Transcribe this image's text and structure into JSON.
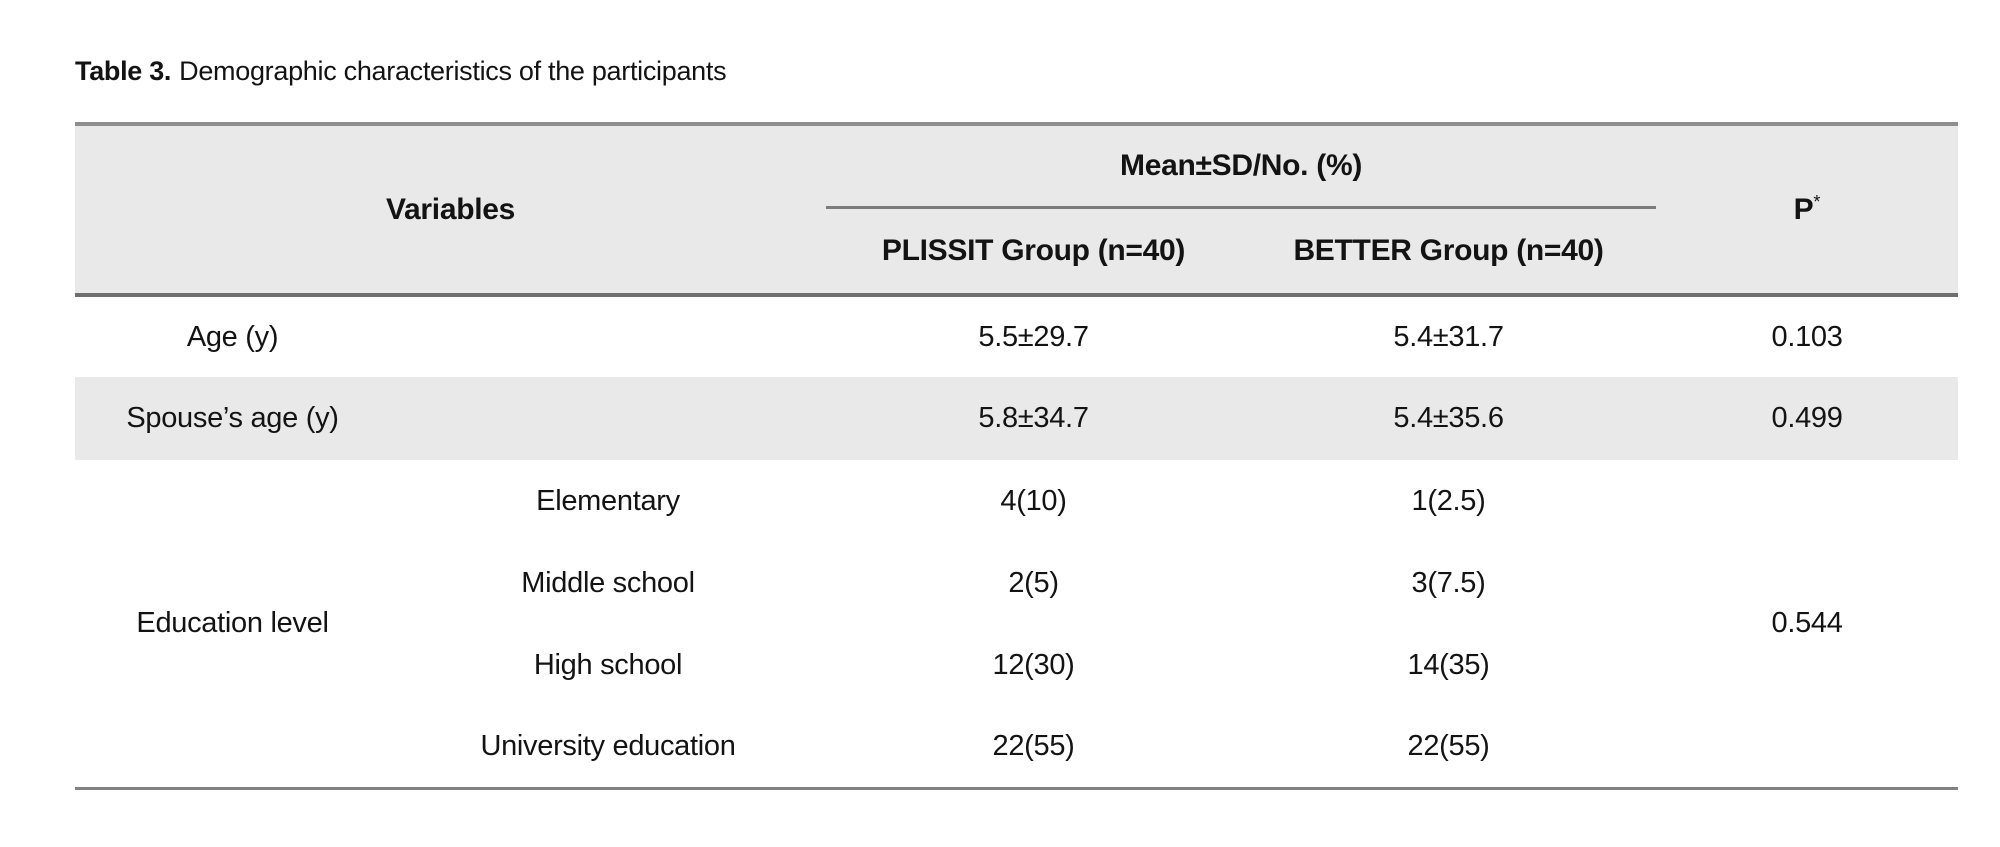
{
  "caption": {
    "label": "Table 3.",
    "text": "Demographic characteristics of the participants"
  },
  "table": {
    "header": {
      "variables": "Variables",
      "group_header": "Mean±SD/No. (%)",
      "plissit": "PLISSIT Group (n=40)",
      "better": "BETTER Group (n=40)",
      "p_label": "P",
      "p_sup": "*"
    },
    "rows": [
      {
        "variable": "Age (y)",
        "plissit": "5.5±29.7",
        "better": "5.4±31.7",
        "p": "0.103"
      },
      {
        "variable": "Spouse’s age (y)",
        "plissit": "5.8±34.7",
        "better": "5.4±35.6",
        "p": "0.499"
      },
      {
        "variable": "Education level",
        "p": "0.544",
        "subrows": [
          {
            "label": "Elementary",
            "plissit": "4(10)",
            "better": "1(2.5)"
          },
          {
            "label": "Middle school",
            "plissit": "2(5)",
            "better": "3(7.5)"
          },
          {
            "label": "High school",
            "plissit": "12(30)",
            "better": "14(35)"
          },
          {
            "label": "University education",
            "plissit": "22(55)",
            "better": "22(55)"
          }
        ]
      }
    ]
  },
  "colors": {
    "header_bg": "#e9e9e9",
    "row_stripe_bg": "#e9e9e9",
    "rule_top": "#8e8e8e",
    "rule_header_bottom": "#6f6f6f",
    "rule_inner": "#7c7c7c",
    "rule_bottom": "#828282",
    "text": "#131313"
  }
}
